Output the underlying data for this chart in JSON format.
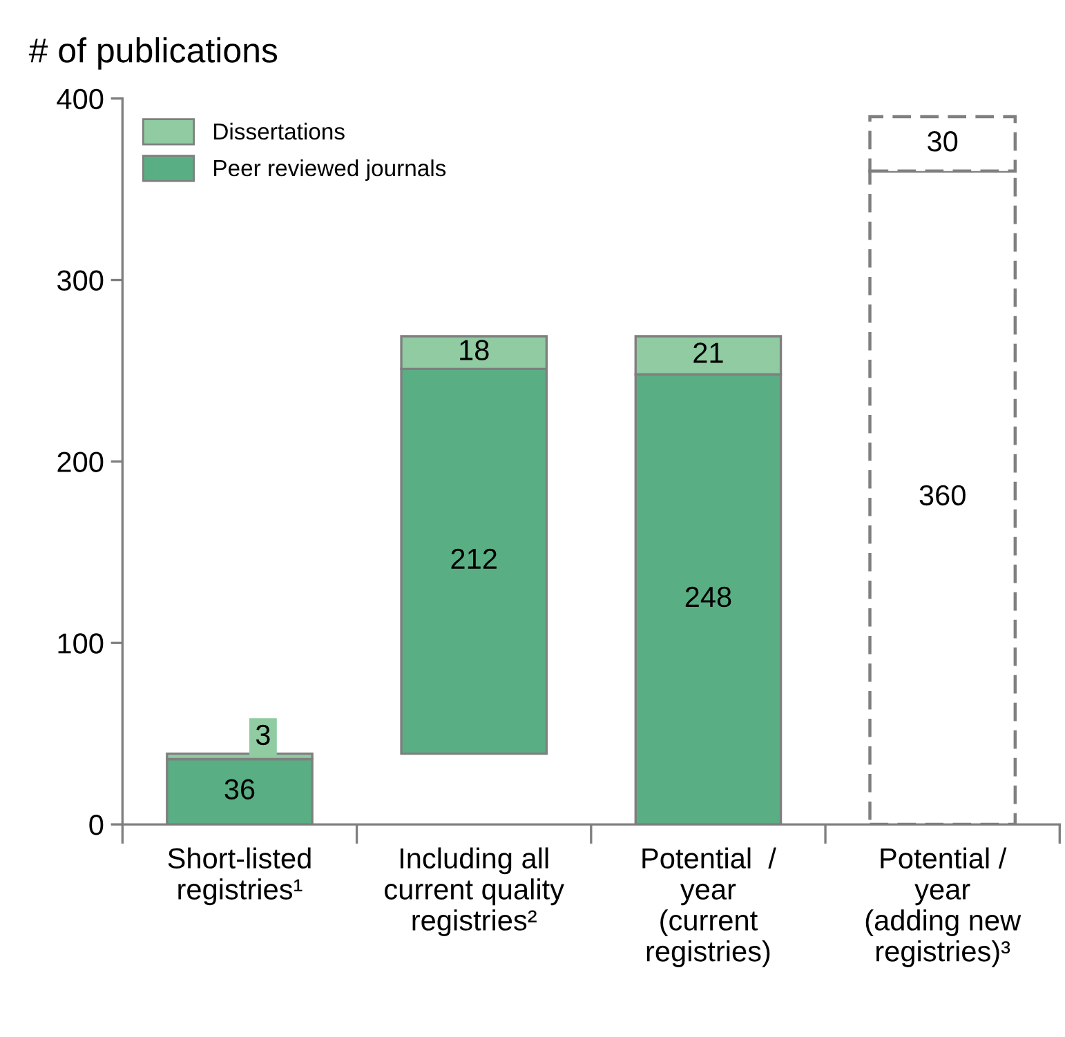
{
  "chart_data": {
    "type": "bar",
    "ylabel": "# of publications",
    "categories": [
      "Short-listed\nregistries¹",
      "Including all\ncurrent quality\nregistries²",
      "Potential  /\nyear\n(current\nregistries)",
      "Potential /\nyear\n(adding new\nregistries)³"
    ],
    "series": [
      {
        "name": "Peer reviewed journals",
        "color": "#5aae84",
        "values": [
          36,
          212,
          248,
          null
        ],
        "base": [
          0,
          39,
          0,
          null
        ]
      },
      {
        "name": "Dissertations",
        "color": "#90cba1",
        "values": [
          3,
          18,
          21,
          null
        ],
        "base": [
          36,
          251,
          248,
          null
        ]
      },
      {
        "color": "#ffffff",
        "line_style": "dashed",
        "values": [
          null,
          null,
          null,
          360
        ],
        "base": [
          null,
          null,
          null,
          0
        ]
      },
      {
        "color": "#ffffff",
        "line_style": "dashed",
        "values": [
          null,
          null,
          null,
          30
        ],
        "base": [
          null,
          null,
          null,
          360
        ]
      }
    ],
    "ylim": [
      0,
      400
    ],
    "yticks": [
      0,
      100,
      200,
      300,
      400
    ],
    "grid": false,
    "legend": "top left",
    "data_labels": true
  }
}
